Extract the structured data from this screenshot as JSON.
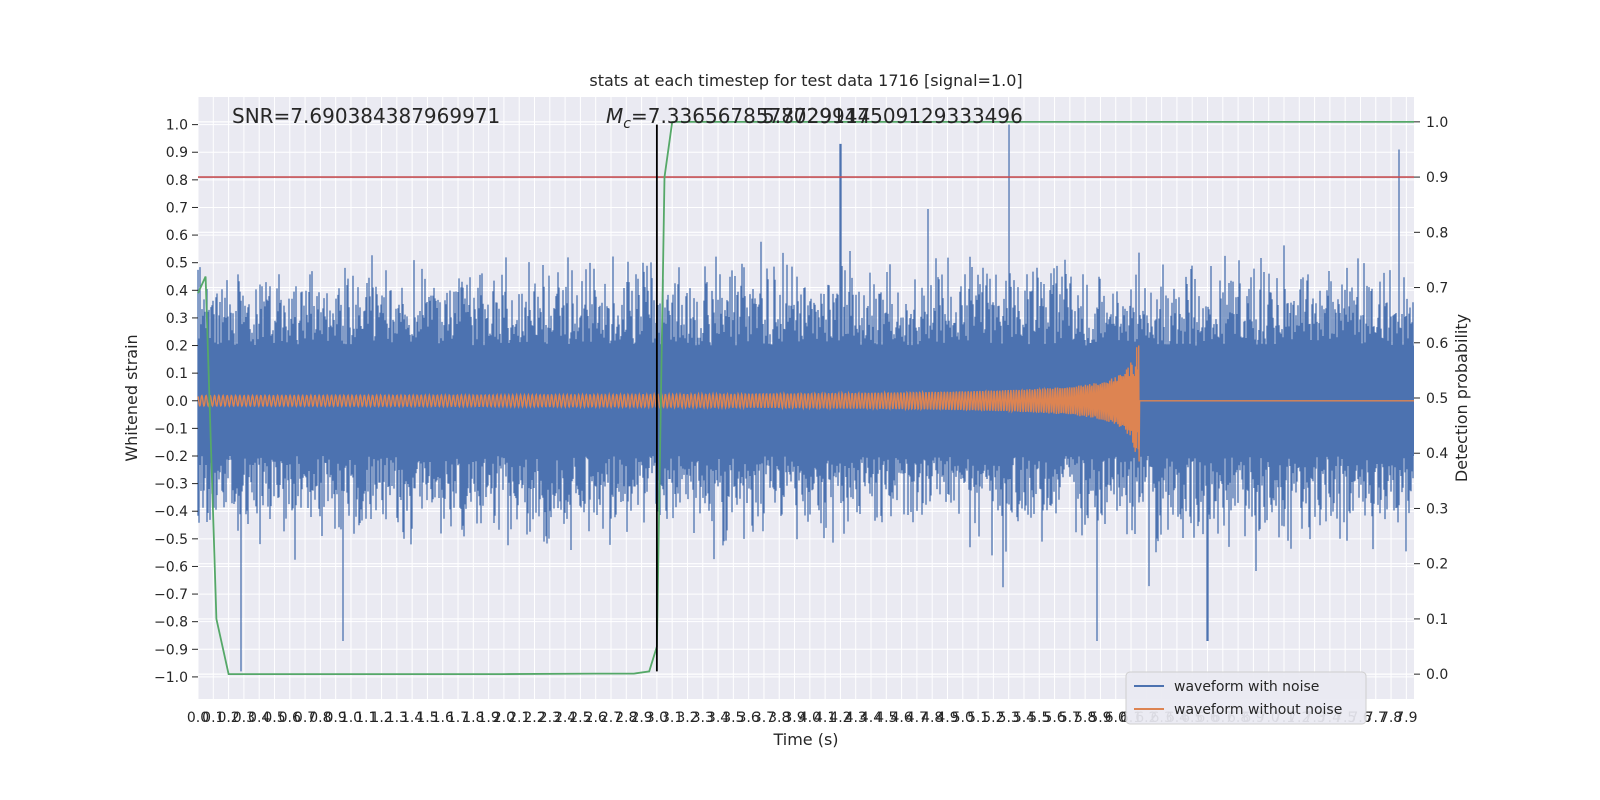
{
  "chart_data": {
    "type": "line",
    "title": "stats at each timestep for test data 1716 [signal=1.0]",
    "xlabel": "Time (s)",
    "ylabel": "Whitened strain",
    "y2label": "Detection probability",
    "xlim": [
      0.0,
      7.95
    ],
    "ylim": [
      -1.08,
      1.1
    ],
    "y2lim": [
      -0.045,
      1.045
    ],
    "x_tick_step": 0.1,
    "x_tick_count": 80,
    "y_ticks": [
      -1.0,
      -0.9,
      -0.8,
      -0.7,
      -0.6,
      -0.5,
      -0.4,
      -0.3,
      -0.2,
      -0.1,
      0.0,
      0.1,
      0.2,
      0.3,
      0.4,
      0.5,
      0.6,
      0.7,
      0.8,
      0.9,
      1.0
    ],
    "y_tick_labels": [
      "−1.0",
      "−0.9",
      "−0.8",
      "−0.7",
      "−0.6",
      "−0.5",
      "−0.4",
      "−0.3",
      "−0.2",
      "−0.1",
      "0.0",
      "0.1",
      "0.2",
      "0.3",
      "0.4",
      "0.5",
      "0.6",
      "0.7",
      "0.8",
      "0.9",
      "1.0"
    ],
    "y2_ticks": [
      0.0,
      0.1,
      0.2,
      0.3,
      0.4,
      0.5,
      0.6,
      0.7,
      0.8,
      0.9,
      1.0
    ],
    "y2_tick_labels": [
      "0.0",
      "0.1",
      "0.2",
      "0.3",
      "0.4",
      "0.5",
      "0.6",
      "0.7",
      "0.8",
      "0.9",
      "1.0"
    ],
    "grid": true,
    "legend_position": "lower-right",
    "background_color": "#eaeaf2",
    "series": [
      {
        "name": "waveform with noise",
        "color": "#4c72b0",
        "kind": "dense-noise",
        "core_amplitude": 0.2,
        "typical_peak": 0.55,
        "notable_peaks": [
          {
            "x": 4.2,
            "y": 0.93
          },
          {
            "x": 5.3,
            "y": 1.0
          },
          {
            "x": 7.85,
            "y": 0.91
          },
          {
            "x": 0.28,
            "y": -0.98
          },
          {
            "x": 6.6,
            "y": -0.87
          },
          {
            "x": 5.88,
            "y": -0.87
          },
          {
            "x": 0.95,
            "y": -0.87
          }
        ]
      },
      {
        "name": "waveform without noise",
        "color": "#dd8452",
        "kind": "chirp",
        "start_x": 0.0,
        "merger_x": 6.15,
        "start_amplitude": 0.01,
        "peak_amplitude": 0.2,
        "trough_amplitude": -0.22
      },
      {
        "color": "#55a868",
        "axis": "right",
        "kind": "probability",
        "x": [
          0.0,
          0.05,
          0.12,
          0.2,
          0.5,
          1.0,
          2.0,
          2.6,
          2.85,
          2.95,
          3.0,
          3.05,
          3.1,
          3.2,
          4.0,
          5.0,
          6.0,
          7.0,
          7.95
        ],
        "y": [
          0.69,
          0.72,
          0.1,
          0.0,
          0.0,
          0.0,
          0.0,
          0.001,
          0.001,
          0.005,
          0.05,
          0.9,
          1.0,
          1.0,
          1.0,
          1.0,
          1.0,
          1.0,
          1.0
        ]
      }
    ],
    "threshold": {
      "y2": 0.9,
      "color": "#c44e52"
    },
    "vertical_marker": {
      "x": 3.0,
      "y_from": -0.98,
      "y_to": 1.0,
      "color": "#000000"
    },
    "annotations": {
      "snr": "SNR=7.690384387969971",
      "mc_prefix": "M",
      "mc_subscript": "c",
      "mc_value": "=7.3365678578729114",
      "overlap": "5.7029947509129333496"
    }
  }
}
